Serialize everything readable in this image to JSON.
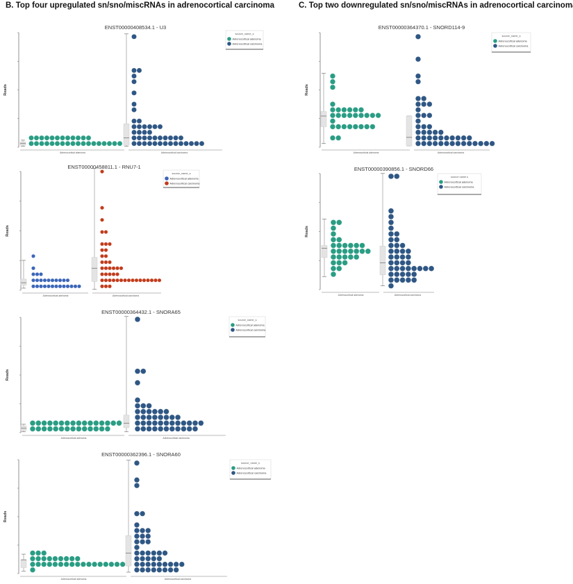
{
  "headings": {
    "B": "B. Top four upregulated sn/sno/miscRNAs in adrenocortical carcinoma",
    "C": "C. Top two downregulated sn/sno/miscRNAs in adrenocortical carcinoma"
  },
  "colors": {
    "adenoma_teal": "#2a9d84",
    "carcinoma_navy": "#2f5784",
    "adenoma_blue": "#3b66b8",
    "carcinoma_red": "#c23b1b",
    "box_fill": "#e4e4e4",
    "axis": "#777777"
  },
  "chart_data": [
    {
      "type": "dot-plot",
      "title": "ENST00000408534.1 - U3",
      "ylabel": "Reads",
      "legend_title": "source_name_s",
      "legend_position": "top-right",
      "categories": [
        "Adrenocortical adenoma",
        "Adrenocortical carcinoma"
      ],
      "series": [
        {
          "name": "Adrenocortical adenoma",
          "color": "#2a9d84",
          "dot_rows": [
            [
              0,
              18
            ],
            [
              1,
              12
            ]
          ]
        },
        {
          "name": "Adrenocortical carcinoma",
          "color": "#2f5784",
          "dot_rows": [
            [
              0,
              14
            ],
            [
              1,
              10
            ],
            [
              2,
              4
            ],
            [
              3,
              6
            ],
            [
              4,
              2
            ],
            [
              6,
              1
            ],
            [
              7,
              1
            ],
            [
              9,
              1
            ],
            [
              11,
              1
            ],
            [
              12,
              1
            ],
            [
              13,
              2
            ],
            [
              19,
              1
            ]
          ]
        }
      ]
    },
    {
      "type": "dot-plot",
      "title": "ENST00000458811.1 - RNU7-1",
      "ylabel": "Reads",
      "legend_title": "source_name_s",
      "legend_position": "top-right",
      "categories": [
        "Adrenocortical adenoma",
        "Adrenocortical carcinoma"
      ],
      "series": [
        {
          "name": "Adrenocortical adenoma",
          "color": "#3b66b8",
          "dot_rows": [
            [
              0,
              13
            ],
            [
              1,
              10
            ],
            [
              2,
              3
            ],
            [
              3,
              1
            ],
            [
              5,
              1
            ]
          ]
        },
        {
          "name": "Adrenocortical carcinoma",
          "color": "#c23b1b",
          "dot_rows": [
            [
              0,
              3
            ],
            [
              1,
              16
            ],
            [
              2,
              5
            ],
            [
              3,
              6
            ],
            [
              4,
              3
            ],
            [
              5,
              2
            ],
            [
              6,
              2
            ],
            [
              7,
              3
            ],
            [
              9,
              2
            ],
            [
              11,
              1
            ],
            [
              13,
              1
            ],
            [
              19,
              1
            ]
          ]
        }
      ]
    },
    {
      "type": "dot-plot",
      "title": "ENST00000364370.1 - SNORD114-9",
      "ylabel": "Reads",
      "legend_title": "source_name_s",
      "legend_position": "top-right",
      "categories": [
        "Adrenocortical adenoma",
        "Adrenocortical carcinoma"
      ],
      "series": [
        {
          "name": "Adrenocortical adenoma",
          "color": "#2a9d84",
          "dot_rows": [
            [
              1,
              2
            ],
            [
              3,
              8
            ],
            [
              4,
              1
            ],
            [
              5,
              9
            ],
            [
              6,
              6
            ],
            [
              7,
              1
            ],
            [
              10,
              1
            ],
            [
              11,
              1
            ],
            [
              12,
              1
            ]
          ]
        },
        {
          "name": "Adrenocortical carcinoma",
          "color": "#2f5784",
          "dot_rows": [
            [
              0,
              14
            ],
            [
              1,
              10
            ],
            [
              2,
              5
            ],
            [
              3,
              3
            ],
            [
              4,
              1
            ],
            [
              5,
              3
            ],
            [
              6,
              1
            ],
            [
              7,
              3
            ],
            [
              8,
              2
            ],
            [
              11,
              1
            ],
            [
              12,
              1
            ],
            [
              15,
              1
            ],
            [
              19,
              1
            ]
          ]
        }
      ]
    },
    {
      "type": "dot-plot",
      "title": "ENST00000390856.1 - SNORD66",
      "ylabel": "Reads",
      "legend_title": "source name s",
      "legend_position": "top-right",
      "categories": [
        "Adrenocortical adenoma",
        "Adrenocortical carcinoma"
      ],
      "series": [
        {
          "name": "Adrenocortical adenoma",
          "color": "#2a9d84",
          "dot_rows": [
            [
              2,
              1
            ],
            [
              3,
              2
            ],
            [
              4,
              3
            ],
            [
              5,
              5
            ],
            [
              6,
              7
            ],
            [
              7,
              6
            ],
            [
              8,
              2
            ],
            [
              9,
              1
            ],
            [
              10,
              1
            ],
            [
              11,
              2
            ]
          ]
        },
        {
          "name": "Adrenocortical carcinoma",
          "color": "#2f5784",
          "dot_rows": [
            [
              0,
              1
            ],
            [
              1,
              5
            ],
            [
              2,
              5
            ],
            [
              3,
              8
            ],
            [
              4,
              4
            ],
            [
              5,
              4
            ],
            [
              6,
              4
            ],
            [
              7,
              3
            ],
            [
              8,
              2
            ],
            [
              9,
              2
            ],
            [
              10,
              1
            ],
            [
              11,
              1
            ],
            [
              12,
              1
            ],
            [
              13,
              1
            ],
            [
              19,
              2
            ]
          ]
        }
      ]
    },
    {
      "type": "dot-plot",
      "title": "ENST00000364432.1 - SNORA65",
      "ylabel": "Reads",
      "legend_title": "source_name_s",
      "legend_position": "top-right",
      "categories": [
        "Adrenocortical adenoma",
        "Adrenocortical carcinoma"
      ],
      "series": [
        {
          "name": "Adrenocortical adenoma",
          "color": "#2a9d84",
          "dot_rows": [
            [
              0,
              14
            ],
            [
              1,
              16
            ]
          ]
        },
        {
          "name": "Adrenocortical carcinoma",
          "color": "#2f5784",
          "dot_rows": [
            [
              0,
              11
            ],
            [
              1,
              12
            ],
            [
              2,
              8
            ],
            [
              3,
              6
            ],
            [
              4,
              3
            ],
            [
              5,
              1
            ],
            [
              8,
              1
            ],
            [
              10,
              2
            ],
            [
              19,
              1
            ]
          ]
        }
      ]
    },
    {
      "type": "dot-plot",
      "title": "ENST00000362396.1 - SNORA60",
      "ylabel": "Reads",
      "legend_title": "source_name_s",
      "legend_position": "top-right",
      "categories": [
        "Adrenocortical adenoma",
        "Adrenocortical carcinoma"
      ],
      "series": [
        {
          "name": "Adrenocortical adenoma",
          "color": "#2a9d84",
          "dot_rows": [
            [
              0,
              1
            ],
            [
              1,
              17
            ],
            [
              2,
              9
            ],
            [
              3,
              3
            ]
          ]
        },
        {
          "name": "Adrenocortical carcinoma",
          "color": "#2f5784",
          "dot_rows": [
            [
              0,
              8
            ],
            [
              1,
              9
            ],
            [
              2,
              5
            ],
            [
              3,
              6
            ],
            [
              4,
              1
            ],
            [
              5,
              3
            ],
            [
              6,
              3
            ],
            [
              7,
              3
            ],
            [
              8,
              1
            ],
            [
              10,
              2
            ],
            [
              15,
              1
            ],
            [
              16,
              1
            ],
            [
              19,
              1
            ]
          ]
        }
      ]
    }
  ]
}
